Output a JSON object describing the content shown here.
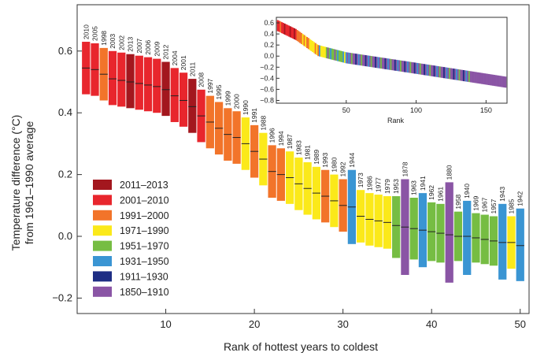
{
  "chart_data": {
    "type": "bar",
    "subtype": "floating-range",
    "xlabel": "Rank of hottest years to coldest",
    "ylabel_lines": [
      "Temperature difference (°C)",
      "from 1961–1990 average"
    ],
    "xlim": [
      0,
      51
    ],
    "ylim": [
      -0.25,
      0.75
    ],
    "x_ticks": [
      10,
      20,
      30,
      40,
      50
    ],
    "y_ticks": [
      -0.2,
      0.0,
      0.2,
      0.4,
      0.6
    ],
    "y_tick_labels": [
      "−0.2",
      "0.0",
      "0.2",
      "0.4",
      "0.6"
    ],
    "grid": false,
    "legend_position": "lower-left",
    "legend": [
      {
        "label": "2011–2013",
        "color": "#a3171e"
      },
      {
        "label": "2001–2010",
        "color": "#e8262d"
      },
      {
        "label": "1991–2000",
        "color": "#f2742a"
      },
      {
        "label": "1971–1990",
        "color": "#fbe91a"
      },
      {
        "label": "1951–1970",
        "color": "#76bd43"
      },
      {
        "label": "1931–1950",
        "color": "#3a95d3"
      },
      {
        "label": "1911–1930",
        "color": "#1e2d84"
      },
      {
        "label": "1850–1910",
        "color": "#8a55a5"
      }
    ],
    "years": [
      {
        "rank": 1,
        "year": "2010",
        "group": 1,
        "value": 0.545,
        "lower": 0.46,
        "upper": 0.63
      },
      {
        "rank": 2,
        "year": "2005",
        "group": 1,
        "value": 0.54,
        "lower": 0.455,
        "upper": 0.625
      },
      {
        "rank": 3,
        "year": "1998",
        "group": 2,
        "value": 0.525,
        "lower": 0.44,
        "upper": 0.61
      },
      {
        "rank": 4,
        "year": "2003",
        "group": 1,
        "value": 0.51,
        "lower": 0.425,
        "upper": 0.6
      },
      {
        "rank": 5,
        "year": "2002",
        "group": 1,
        "value": 0.505,
        "lower": 0.42,
        "upper": 0.595
      },
      {
        "rank": 6,
        "year": "2013",
        "group": 0,
        "value": 0.5,
        "lower": 0.415,
        "upper": 0.59
      },
      {
        "rank": 7,
        "year": "2007",
        "group": 1,
        "value": 0.495,
        "lower": 0.41,
        "upper": 0.585
      },
      {
        "rank": 8,
        "year": "2006",
        "group": 1,
        "value": 0.49,
        "lower": 0.405,
        "upper": 0.58
      },
      {
        "rank": 9,
        "year": "2009",
        "group": 1,
        "value": 0.485,
        "lower": 0.4,
        "upper": 0.575
      },
      {
        "rank": 10,
        "year": "2012",
        "group": 0,
        "value": 0.475,
        "lower": 0.39,
        "upper": 0.565
      },
      {
        "rank": 11,
        "year": "2004",
        "group": 1,
        "value": 0.455,
        "lower": 0.37,
        "upper": 0.545
      },
      {
        "rank": 12,
        "year": "2001",
        "group": 1,
        "value": 0.44,
        "lower": 0.355,
        "upper": 0.53
      },
      {
        "rank": 13,
        "year": "2011",
        "group": 0,
        "value": 0.42,
        "lower": 0.335,
        "upper": 0.51
      },
      {
        "rank": 14,
        "year": "2008",
        "group": 1,
        "value": 0.39,
        "lower": 0.305,
        "upper": 0.475
      },
      {
        "rank": 15,
        "year": "1997",
        "group": 2,
        "value": 0.37,
        "lower": 0.285,
        "upper": 0.455
      },
      {
        "rank": 16,
        "year": "1995",
        "group": 2,
        "value": 0.35,
        "lower": 0.265,
        "upper": 0.435
      },
      {
        "rank": 17,
        "year": "1999",
        "group": 2,
        "value": 0.33,
        "lower": 0.245,
        "upper": 0.415
      },
      {
        "rank": 18,
        "year": "2000",
        "group": 2,
        "value": 0.32,
        "lower": 0.235,
        "upper": 0.405
      },
      {
        "rank": 19,
        "year": "1990",
        "group": 3,
        "value": 0.3,
        "lower": 0.215,
        "upper": 0.385
      },
      {
        "rank": 20,
        "year": "1991",
        "group": 2,
        "value": 0.275,
        "lower": 0.19,
        "upper": 0.36
      },
      {
        "rank": 21,
        "year": "1988",
        "group": 3,
        "value": 0.25,
        "lower": 0.165,
        "upper": 0.335
      },
      {
        "rank": 22,
        "year": "1996",
        "group": 2,
        "value": 0.21,
        "lower": 0.125,
        "upper": 0.295
      },
      {
        "rank": 23,
        "year": "1994",
        "group": 2,
        "value": 0.2,
        "lower": 0.115,
        "upper": 0.285
      },
      {
        "rank": 24,
        "year": "1987",
        "group": 3,
        "value": 0.19,
        "lower": 0.105,
        "upper": 0.275
      },
      {
        "rank": 25,
        "year": "1983",
        "group": 3,
        "value": 0.17,
        "lower": 0.085,
        "upper": 0.255
      },
      {
        "rank": 26,
        "year": "1981",
        "group": 3,
        "value": 0.155,
        "lower": 0.07,
        "upper": 0.24
      },
      {
        "rank": 27,
        "year": "1989",
        "group": 3,
        "value": 0.14,
        "lower": 0.055,
        "upper": 0.225
      },
      {
        "rank": 28,
        "year": "1993",
        "group": 2,
        "value": 0.13,
        "lower": 0.045,
        "upper": 0.215
      },
      {
        "rank": 29,
        "year": "1980",
        "group": 3,
        "value": 0.115,
        "lower": 0.03,
        "upper": 0.2
      },
      {
        "rank": 30,
        "year": "1992",
        "group": 2,
        "value": 0.1,
        "lower": 0.015,
        "upper": 0.185
      },
      {
        "rank": 31,
        "year": "1944",
        "group": 5,
        "value": 0.095,
        "lower": -0.025,
        "upper": 0.215
      },
      {
        "rank": 32,
        "year": "1973",
        "group": 3,
        "value": 0.065,
        "lower": -0.02,
        "upper": 0.15
      },
      {
        "rank": 33,
        "year": "1986",
        "group": 3,
        "value": 0.055,
        "lower": -0.03,
        "upper": 0.14
      },
      {
        "rank": 34,
        "year": "1977",
        "group": 3,
        "value": 0.05,
        "lower": -0.035,
        "upper": 0.135
      },
      {
        "rank": 35,
        "year": "1979",
        "group": 3,
        "value": 0.045,
        "lower": -0.04,
        "upper": 0.13
      },
      {
        "rank": 36,
        "year": "1953",
        "group": 4,
        "value": 0.035,
        "lower": -0.07,
        "upper": 0.13
      },
      {
        "rank": 37,
        "year": "1878",
        "group": 7,
        "value": 0.03,
        "lower": -0.125,
        "upper": 0.185
      },
      {
        "rank": 38,
        "year": "1963",
        "group": 4,
        "value": 0.025,
        "lower": -0.075,
        "upper": 0.125
      },
      {
        "rank": 39,
        "year": "1941",
        "group": 5,
        "value": 0.02,
        "lower": -0.1,
        "upper": 0.14
      },
      {
        "rank": 40,
        "year": "1962",
        "group": 4,
        "value": 0.015,
        "lower": -0.08,
        "upper": 0.11
      },
      {
        "rank": 41,
        "year": "1961",
        "group": 4,
        "value": 0.01,
        "lower": -0.085,
        "upper": 0.105
      },
      {
        "rank": 42,
        "year": "1880",
        "group": 7,
        "value": 0.005,
        "lower": -0.15,
        "upper": 0.175
      },
      {
        "rank": 43,
        "year": "1958",
        "group": 4,
        "value": 0.0,
        "lower": -0.08,
        "upper": 0.08
      },
      {
        "rank": 44,
        "year": "1940",
        "group": 5,
        "value": 0.0,
        "lower": -0.125,
        "upper": 0.115
      },
      {
        "rank": 45,
        "year": "1969",
        "group": 4,
        "value": -0.005,
        "lower": -0.085,
        "upper": 0.075
      },
      {
        "rank": 46,
        "year": "1967",
        "group": 4,
        "value": -0.01,
        "lower": -0.09,
        "upper": 0.07
      },
      {
        "rank": 47,
        "year": "1957",
        "group": 4,
        "value": -0.015,
        "lower": -0.095,
        "upper": 0.065
      },
      {
        "rank": 48,
        "year": "1943",
        "group": 5,
        "value": -0.02,
        "lower": -0.14,
        "upper": 0.105
      },
      {
        "rank": 49,
        "year": "1985",
        "group": 3,
        "value": -0.02,
        "lower": -0.105,
        "upper": 0.065
      },
      {
        "rank": 50,
        "year": "1942",
        "group": 5,
        "value": -0.03,
        "lower": -0.145,
        "upper": 0.09
      }
    ],
    "inset": {
      "type": "floating-range",
      "xlabel": "Rank",
      "xlim": [
        0,
        165
      ],
      "ylim": [
        -0.85,
        0.7
      ],
      "x_ticks": [
        50,
        100,
        150
      ],
      "y_ticks": [
        0.6,
        0.4,
        0.2,
        0.0,
        -0.2,
        -0.4,
        -0.6,
        -0.8
      ],
      "y_tick_labels": [
        "0.6",
        "0.4",
        "0.2",
        "0.0",
        "−0.2",
        "−0.4",
        "−0.6",
        "−0.8"
      ],
      "n_years": 164,
      "approx_trend": [
        {
          "rank": 1,
          "value": 0.55
        },
        {
          "rank": 14,
          "value": 0.39
        },
        {
          "rank": 30,
          "value": 0.1
        },
        {
          "rank": 50,
          "value": -0.03
        },
        {
          "rank": 100,
          "value": -0.22
        },
        {
          "rank": 164,
          "value": -0.47
        }
      ],
      "bar_half_range": 0.1
    }
  }
}
